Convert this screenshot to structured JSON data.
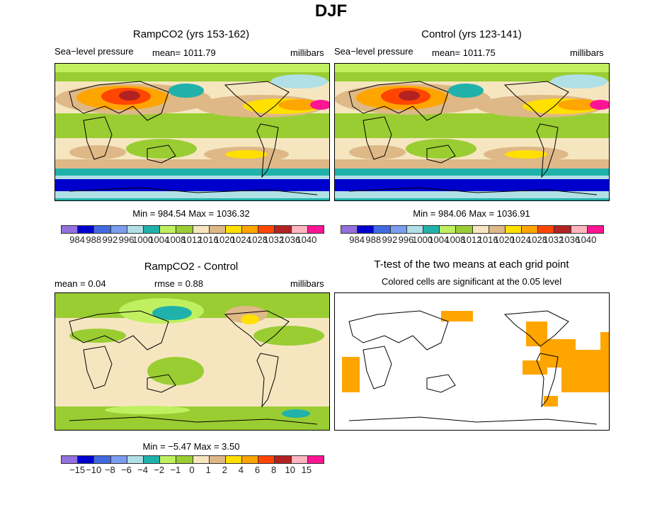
{
  "title": "DJF",
  "panels": [
    {
      "title": "RampCO2 (yrs 153-162)",
      "variable": "Sea−level pressure",
      "mean": "mean= 1011.79",
      "units": "millibars",
      "minmax": "Min = 984.54 Max = 1036.32"
    },
    {
      "title": "Control (yrs 123-141)",
      "variable": "Sea−level pressure",
      "mean": "mean= 1011.75",
      "units": "millibars",
      "minmax": "Min = 984.06 Max = 1036.91"
    },
    {
      "title": "RampCO2 - Control",
      "mean": "mean =    0.04",
      "rmse": "rmse =    0.88",
      "units": "millibars",
      "minmax": "Min =   −5.47 Max =    3.50"
    },
    {
      "title": "T-test of the two means at each grid point",
      "subtitle": "Colored cells are significant at the 0.05 level"
    }
  ],
  "colorbar_colors": [
    "#9370db",
    "#0000cd",
    "#4169e1",
    "#7b9df0",
    "#b0e0e6",
    "#20b2aa",
    "#c0f060",
    "#9acd32",
    "#f5e6c0",
    "#deb887",
    "#ffe000",
    "#ffa500",
    "#ff4500",
    "#b22222",
    "#ffb6c1",
    "#ff1493"
  ],
  "colorbar_abs_labels": [
    "984",
    "988",
    "992",
    "996",
    "1000",
    "1004",
    "1008",
    "1012",
    "1016",
    "1020",
    "1024",
    "1028",
    "1032",
    "1036",
    "1040"
  ],
  "colorbar_diff_labels": [
    "−15",
    "−10",
    "−8",
    "−6",
    "−4",
    "−2",
    "−1",
    "0",
    "1",
    "2",
    "4",
    "6",
    "8",
    "10",
    "15"
  ],
  "significance_color": "#ffa500"
}
